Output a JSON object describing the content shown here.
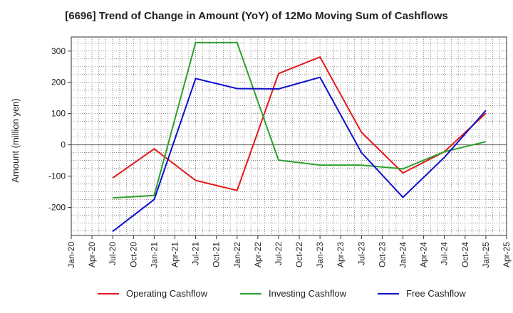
{
  "chart_data": {
    "type": "line",
    "title": "[6696]  Trend of Change in Amount (YoY) of 12Mo Moving Sum of Cashflows",
    "ylabel": "Amount (million yen)",
    "xlabel": "",
    "x_ticks": [
      "Jan-20",
      "Apr-20",
      "Jul-20",
      "Oct-20",
      "Jan-21",
      "Apr-21",
      "Jul-21",
      "Oct-21",
      "Jan-22",
      "Apr-22",
      "Jul-22",
      "Oct-22",
      "Jan-23",
      "Apr-23",
      "Jul-23",
      "Oct-23",
      "Jan-24",
      "Apr-24",
      "Jul-24",
      "Oct-24",
      "Jan-25",
      "Apr-25"
    ],
    "y_ticks": [
      300,
      200,
      100,
      0,
      -100,
      -200
    ],
    "ylim": [
      -290,
      345
    ],
    "grid": true,
    "legend_position": "bottom",
    "series": [
      {
        "name": "Operating Cashflow",
        "color": "#e41a1c",
        "x": [
          "Jul-20",
          "Jan-21",
          "Jul-21",
          "Jan-22",
          "Jul-22",
          "Jan-23",
          "Jul-23",
          "Jan-24",
          "Jul-24",
          "Jan-25"
        ],
        "values": [
          -106,
          -13,
          -114,
          -146,
          228,
          281,
          40,
          -90,
          -22,
          101
        ]
      },
      {
        "name": "Investing Cashflow",
        "color": "#2ca02c",
        "x": [
          "Jul-20",
          "Jan-21",
          "Jul-21",
          "Jan-22",
          "Jul-22",
          "Jan-23",
          "Jul-23",
          "Jan-24",
          "Jul-24",
          "Jan-25"
        ],
        "values": [
          -170,
          -162,
          327,
          327,
          -49,
          -65,
          -65,
          -77,
          -22,
          10
        ]
      },
      {
        "name": "Free Cashflow",
        "color": "#1010cc",
        "x": [
          "Jul-20",
          "Jan-21",
          "Jul-21",
          "Jan-22",
          "Jul-22",
          "Jan-23",
          "Jul-23",
          "Jan-24",
          "Jul-24",
          "Jan-25"
        ],
        "values": [
          -277,
          -175,
          212,
          180,
          179,
          216,
          -25,
          -168,
          -40,
          110
        ]
      }
    ]
  }
}
